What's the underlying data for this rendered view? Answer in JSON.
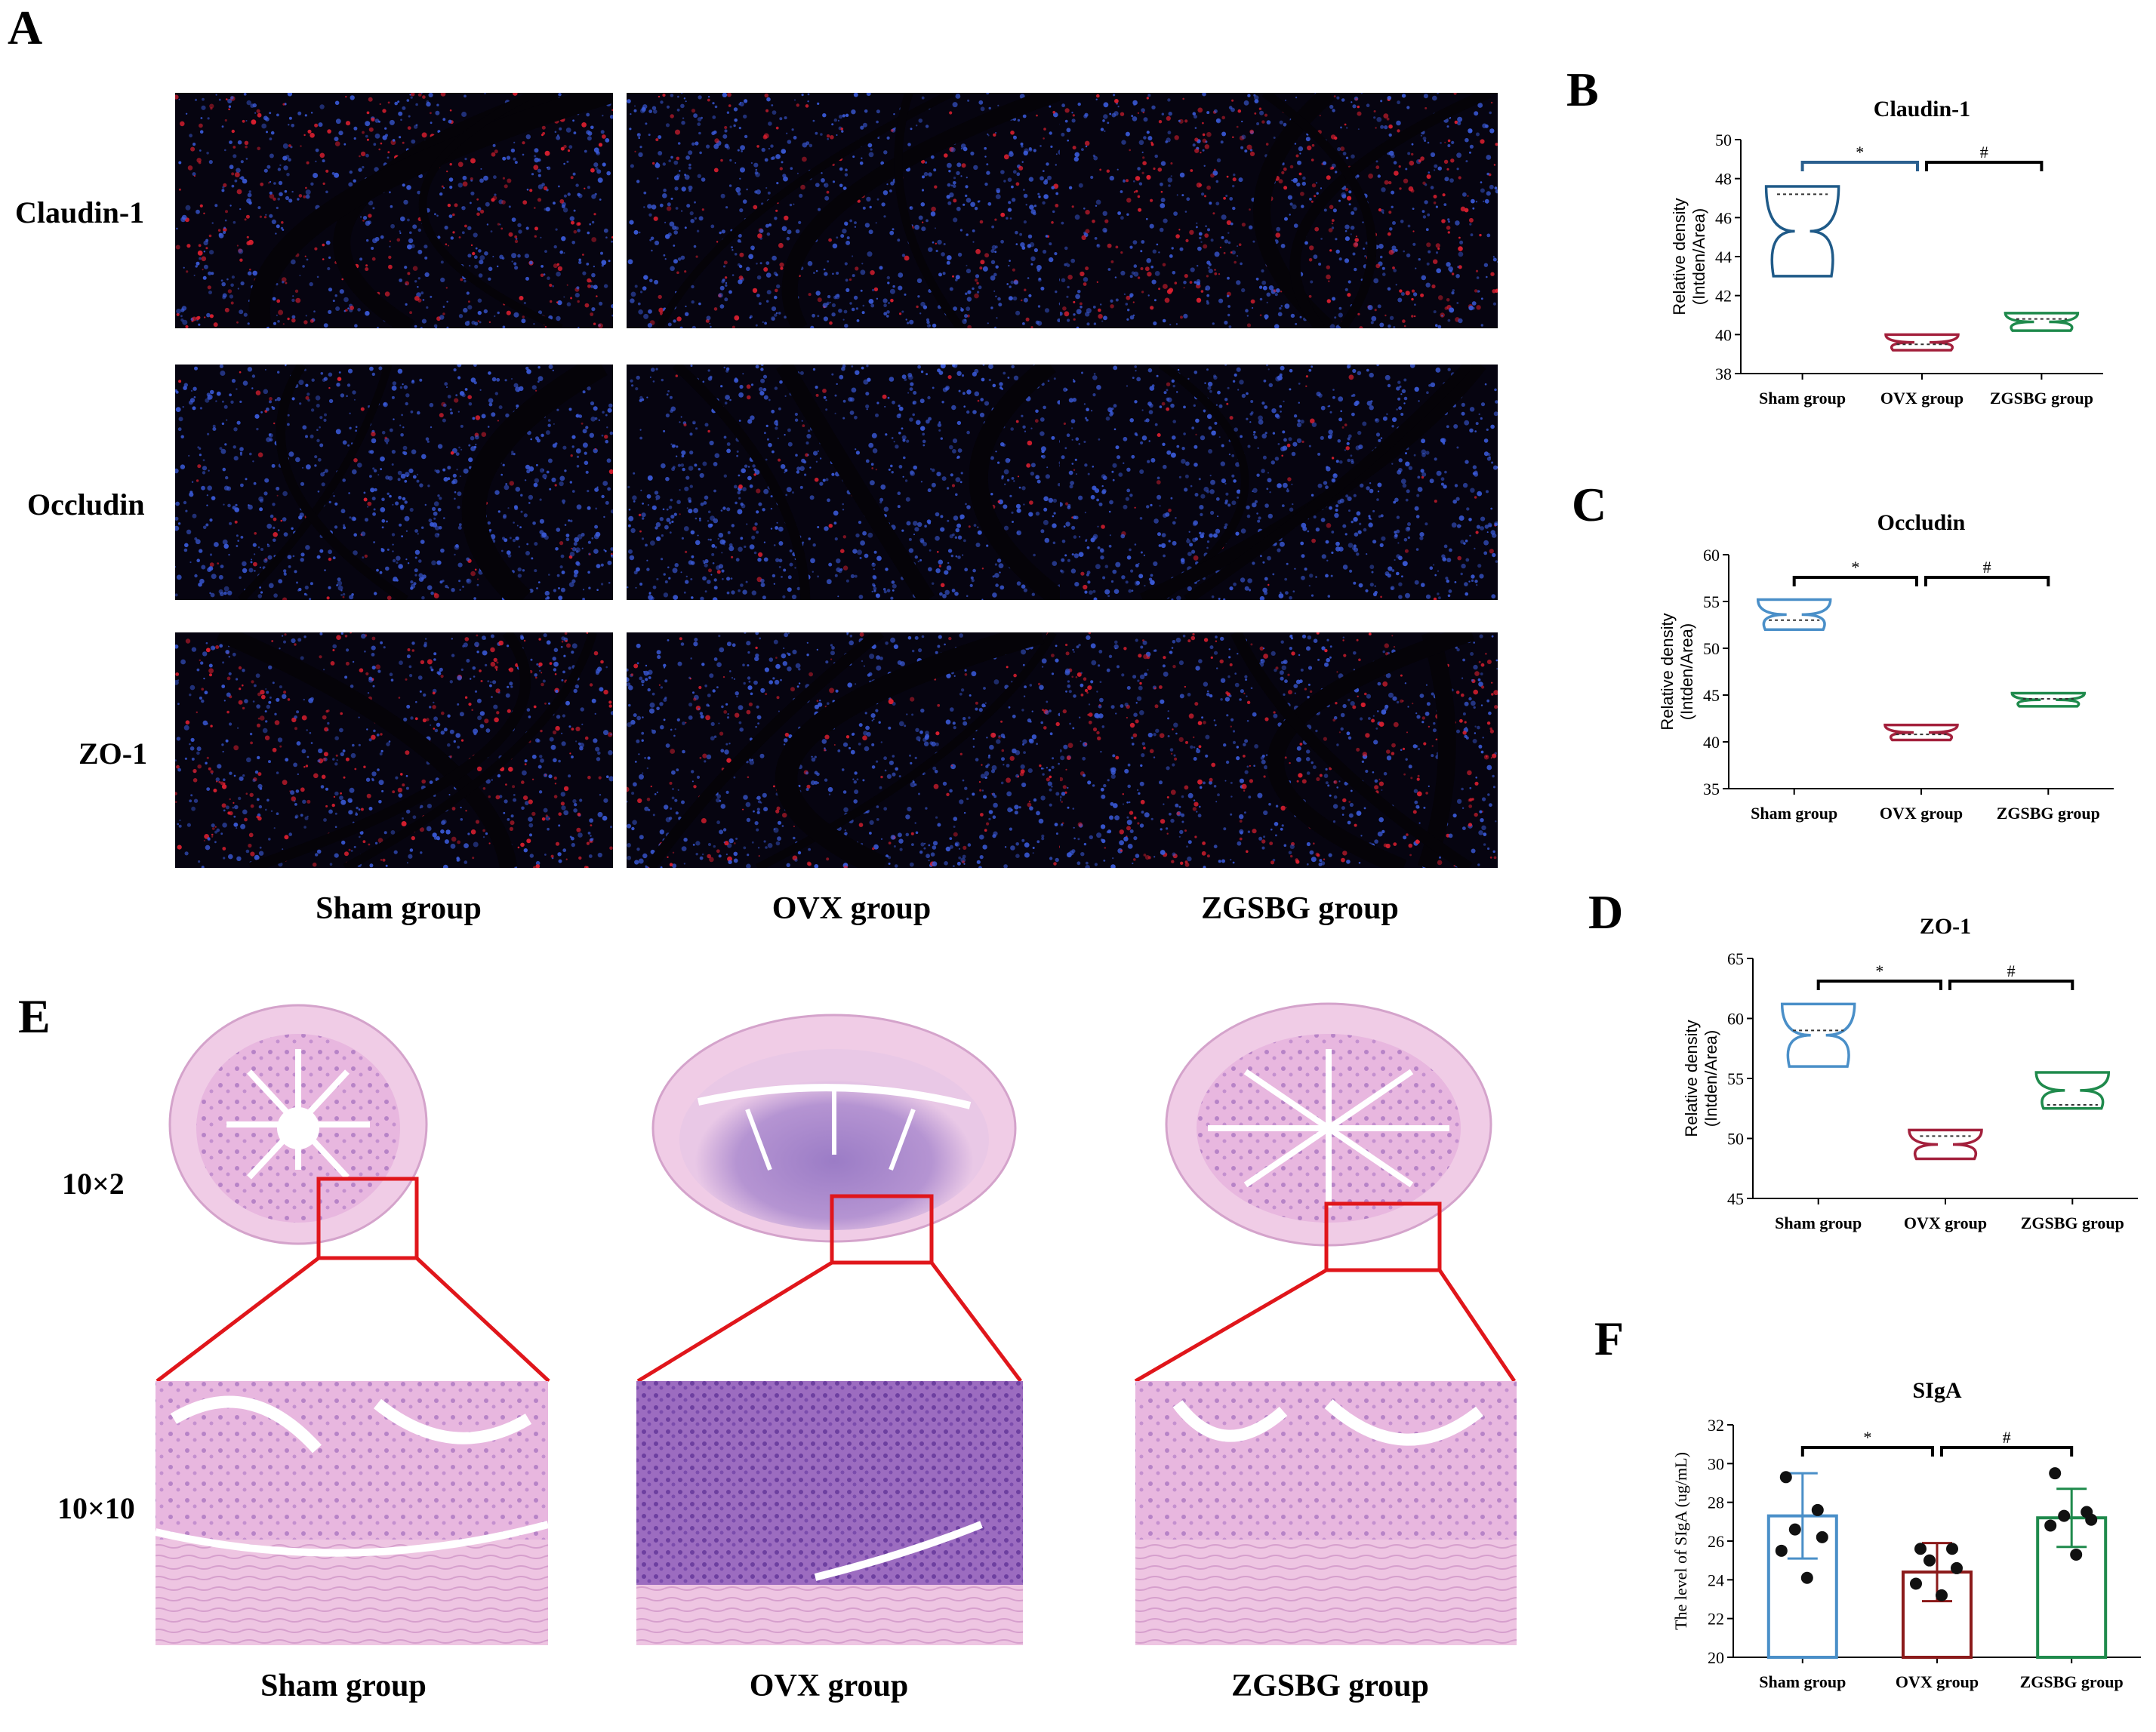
{
  "panel_a": {
    "letter": "A",
    "rows": [
      "Claudin-1",
      "Occludin",
      "ZO-1"
    ],
    "groups": [
      "Sham group",
      "OVX group",
      "ZGSBG group"
    ]
  },
  "panel_e": {
    "letter": "E",
    "magnifications": [
      "10×2",
      "10×10"
    ],
    "groups": [
      "Sham group",
      "OVX group",
      "ZGSBG group"
    ]
  },
  "colors": {
    "sham": "#4a8fc8",
    "ovx": "#a3203c",
    "zgsbg": "#1f8a4c",
    "highlight": "#e0161b"
  },
  "chart_data": [
    {
      "panel": "B",
      "type": "violin",
      "title": "Claudin-1",
      "ylabel": "Relative density\n(Intden/Area)",
      "categories": [
        "Sham group",
        "OVX group",
        "ZGSBG group"
      ],
      "ylim": [
        38,
        50
      ],
      "yticks": [
        38,
        40,
        42,
        44,
        46,
        48,
        50
      ],
      "series": [
        {
          "category": "Sham group",
          "min": 43.0,
          "max": 47.6,
          "median": 47.2,
          "color": "#1f5a88"
        },
        {
          "category": "OVX group",
          "min": 39.2,
          "max": 40.0,
          "median": 39.5,
          "color": "#a3203c"
        },
        {
          "category": "ZGSBG group",
          "min": 40.2,
          "max": 41.1,
          "median": 40.8,
          "color": "#1f8a4c"
        }
      ],
      "significance": [
        {
          "from": "Sham group",
          "to": "OVX group",
          "label": "*"
        },
        {
          "from": "OVX group",
          "to": "ZGSBG group",
          "label": "#"
        }
      ]
    },
    {
      "panel": "C",
      "type": "violin",
      "title": "Occludin",
      "ylabel": "Relative density\n(Intden/Area)",
      "categories": [
        "Sham group",
        "OVX group",
        "ZGSBG group"
      ],
      "ylim": [
        35,
        60
      ],
      "yticks": [
        35,
        40,
        45,
        50,
        55,
        60
      ],
      "series": [
        {
          "category": "Sham group",
          "min": 52.0,
          "max": 55.2,
          "median": 53.0,
          "color": "#4a8fc8"
        },
        {
          "category": "OVX group",
          "min": 40.2,
          "max": 41.8,
          "median": 40.8,
          "color": "#a3203c"
        },
        {
          "category": "ZGSBG group",
          "min": 43.8,
          "max": 45.2,
          "median": 44.6,
          "color": "#1f8a4c"
        }
      ],
      "significance": [
        {
          "from": "Sham group",
          "to": "OVX group",
          "label": "*"
        },
        {
          "from": "OVX group",
          "to": "ZGSBG group",
          "label": "#"
        }
      ]
    },
    {
      "panel": "D",
      "type": "violin",
      "title": "ZO-1",
      "ylabel": "Relative density\n(Intden/Area)",
      "categories": [
        "Sham group",
        "OVX group",
        "ZGSBG group"
      ],
      "ylim": [
        45,
        65
      ],
      "yticks": [
        45,
        50,
        55,
        60,
        65
      ],
      "series": [
        {
          "category": "Sham group",
          "min": 56.0,
          "max": 61.2,
          "median": 59.0,
          "color": "#4a8fc8"
        },
        {
          "category": "OVX group",
          "min": 48.3,
          "max": 50.7,
          "median": 50.2,
          "color": "#a3203c"
        },
        {
          "category": "ZGSBG group",
          "min": 52.5,
          "max": 55.5,
          "median": 52.8,
          "color": "#1f8a4c"
        }
      ],
      "significance": [
        {
          "from": "Sham group",
          "to": "OVX group",
          "label": "*"
        },
        {
          "from": "OVX group",
          "to": "ZGSBG group",
          "label": "#"
        }
      ]
    },
    {
      "panel": "F",
      "type": "bar",
      "title": "SIgA",
      "ylabel": "The level of SIgA (ug/mL)",
      "categories": [
        "Sham group",
        "OVX group",
        "ZGSBG group"
      ],
      "ylim": [
        20,
        32
      ],
      "yticks": [
        20,
        22,
        24,
        26,
        28,
        30,
        32
      ],
      "values": [
        27.3,
        24.4,
        27.2
      ],
      "sd": [
        2.2,
        1.5,
        1.5
      ],
      "points": [
        [
          29.3,
          27.6,
          26.6,
          26.2,
          25.5,
          24.1
        ],
        [
          25.6,
          25.6,
          25.0,
          24.6,
          23.8,
          23.2
        ],
        [
          29.5,
          27.5,
          27.3,
          27.1,
          26.8,
          25.3
        ]
      ],
      "colors": [
        "#4a8fc8",
        "#8b1a1a",
        "#1f8a4c"
      ],
      "significance": [
        {
          "from": "Sham group",
          "to": "OVX group",
          "label": "*"
        },
        {
          "from": "OVX group",
          "to": "ZGSBG group",
          "label": "#"
        }
      ]
    }
  ]
}
